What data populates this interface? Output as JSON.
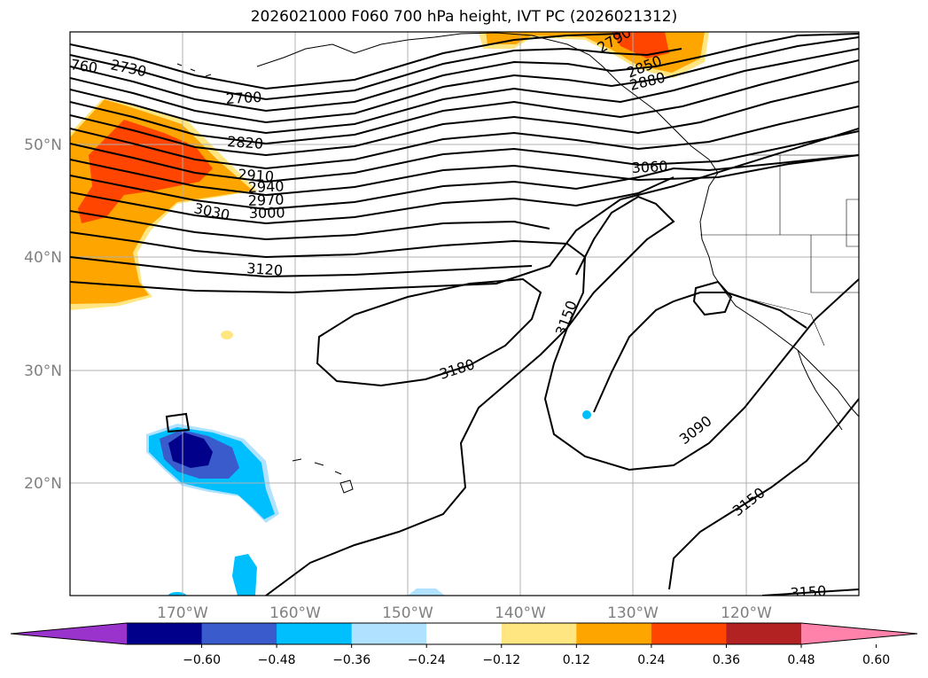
{
  "title": "2026021000 F060 700 hPa height, IVT PC (2026021312)",
  "lat_labels": [
    "50°N",
    "40°N",
    "30°N",
    "20°N"
  ],
  "lon_labels": [
    "170°W",
    "160°W",
    "150°W",
    "140°W",
    "130°W",
    "120°W"
  ],
  "contour_labels": [
    "760",
    "2730",
    "2700",
    "2790",
    "2850",
    "2880",
    "2820",
    "2910",
    "2940",
    "2970",
    "3000",
    "3030",
    "3060",
    "3120",
    "3150",
    "3180",
    "3090",
    "3150",
    "3150"
  ],
  "colorbar": {
    "ticks": [
      "−0.60",
      "−0.48",
      "−0.36",
      "−0.24",
      "−0.12",
      "0.12",
      "0.24",
      "0.36",
      "0.48",
      "0.60"
    ],
    "colors": [
      "#9933cc",
      "#00008b",
      "#3a5bcc",
      "#00bfff",
      "#b0e2ff",
      "#ffffff",
      "#ffe680",
      "#ffa500",
      "#ff4500",
      "#b22222",
      "#ff82ab"
    ]
  },
  "colors": {
    "frame": "#000000",
    "grid": "#b0b0b0",
    "contour": "#000000"
  }
}
